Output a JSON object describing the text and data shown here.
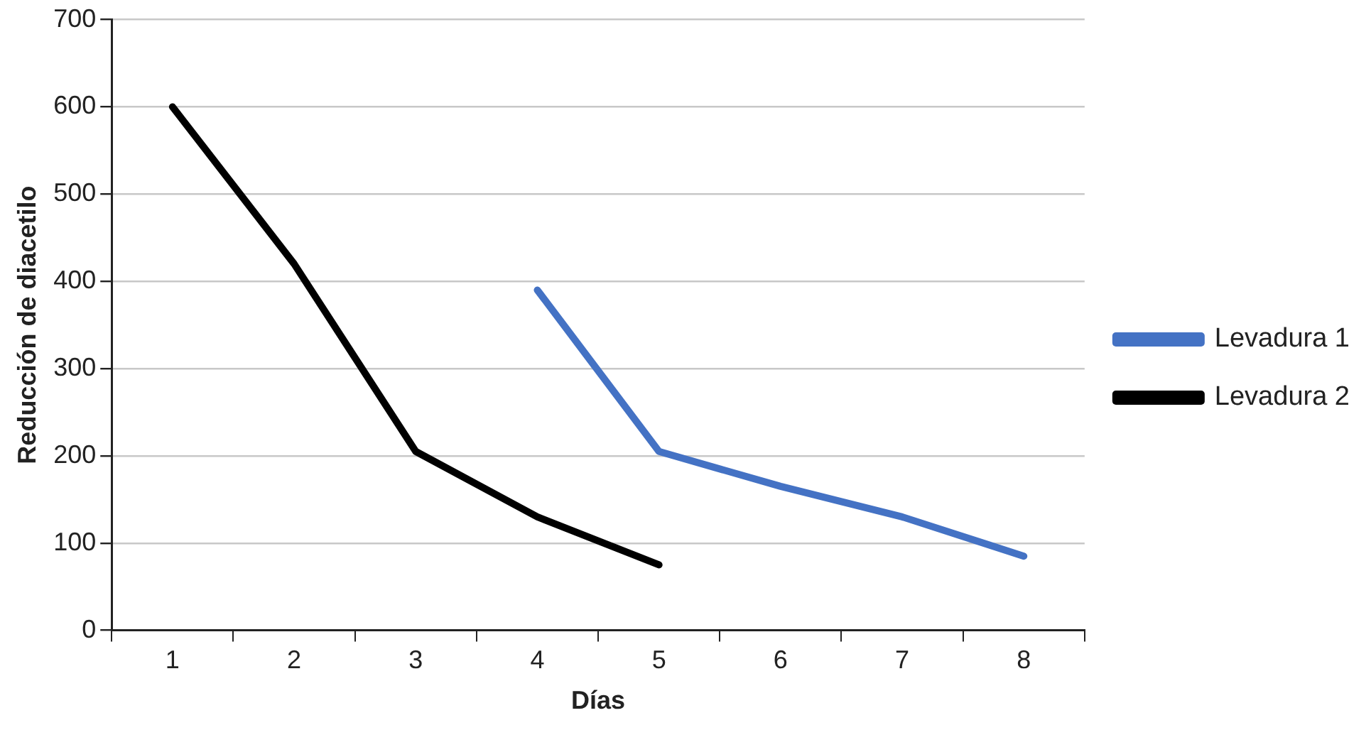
{
  "chart_data": {
    "type": "line",
    "xlabel": "Días",
    "ylabel": "Reducción de diacetilo",
    "categories": [
      "1",
      "2",
      "3",
      "4",
      "5",
      "6",
      "7",
      "8"
    ],
    "series": [
      {
        "name": "Levadura 1",
        "color": "#4472c4",
        "values": [
          null,
          null,
          null,
          390,
          205,
          165,
          130,
          85
        ]
      },
      {
        "name": "Levadura 2",
        "color": "#000000",
        "values": [
          600,
          420,
          205,
          130,
          75,
          null,
          null,
          null
        ]
      }
    ],
    "ylim": [
      0,
      700
    ],
    "yticks": [
      0,
      100,
      200,
      300,
      400,
      500,
      600,
      700
    ],
    "grid": "y",
    "legend": "right",
    "marker": "none",
    "line_style": "solid"
  }
}
